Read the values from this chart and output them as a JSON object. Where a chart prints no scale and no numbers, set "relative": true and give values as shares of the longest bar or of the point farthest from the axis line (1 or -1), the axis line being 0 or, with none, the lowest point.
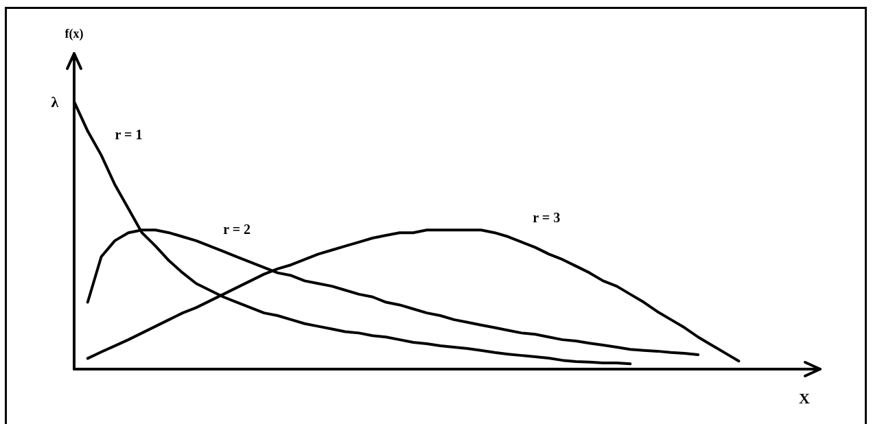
{
  "chart_data": {
    "type": "line",
    "relative": true,
    "ylabel": "f(x)",
    "xlabel": "X",
    "line_style": "solid",
    "annotations": [
      "λ"
    ],
    "categories": [
      null,
      null,
      null,
      null,
      null,
      null,
      null,
      null,
      null,
      null,
      null,
      null,
      null,
      null,
      null,
      null,
      null,
      null,
      null,
      null,
      null,
      null,
      null,
      null,
      null,
      null,
      null,
      null,
      null,
      null,
      null,
      null,
      null,
      null,
      null,
      null,
      null,
      null,
      null,
      null,
      null,
      null,
      null,
      null,
      null,
      null,
      null,
      null,
      null,
      null,
      null,
      null,
      null,
      null,
      null,
      null
    ],
    "series": [
      {
        "name": "r = 1",
        "color": "#000000",
        "values": [
          1.0,
          0.89,
          0.8,
          0.69,
          0.6,
          0.51,
          0.46,
          0.405,
          0.36,
          0.32,
          0.295,
          0.27,
          0.25,
          0.23,
          0.21,
          0.2,
          0.185,
          0.17,
          0.16,
          0.15,
          0.14,
          0.135,
          0.125,
          0.12,
          0.11,
          0.1,
          0.095,
          0.087,
          0.082,
          0.077,
          0.07,
          0.062,
          0.056,
          0.051,
          0.046,
          0.041,
          0.033,
          0.028,
          0.026,
          0.023,
          0.023,
          0.02,
          null,
          null,
          null,
          null,
          null,
          null,
          null,
          null,
          null,
          null,
          null,
          null,
          null,
          null
        ]
      },
      {
        "name": "r = 2",
        "color": "#000000",
        "values": [
          null,
          0.25,
          0.42,
          0.48,
          0.51,
          0.52,
          0.52,
          0.51,
          0.495,
          0.48,
          0.46,
          0.44,
          0.42,
          0.4,
          0.38,
          0.36,
          0.35,
          0.33,
          0.32,
          0.31,
          0.295,
          0.28,
          0.27,
          0.25,
          0.24,
          0.225,
          0.21,
          0.2,
          0.185,
          0.175,
          0.165,
          0.155,
          0.145,
          0.135,
          0.13,
          0.12,
          0.11,
          0.105,
          0.097,
          0.09,
          0.082,
          0.074,
          0.07,
          0.067,
          0.062,
          0.059,
          0.054,
          null,
          null,
          null,
          null,
          null,
          null,
          null,
          null,
          null
        ]
      },
      {
        "name": "r = 3",
        "color": "#000000",
        "values": [
          null,
          0.04,
          0.064,
          0.087,
          0.11,
          0.135,
          0.16,
          0.185,
          0.21,
          0.23,
          0.255,
          0.28,
          0.305,
          0.33,
          0.355,
          0.375,
          0.39,
          0.41,
          0.43,
          0.445,
          0.46,
          0.475,
          0.49,
          0.5,
          0.51,
          0.51,
          0.52,
          0.52,
          0.52,
          0.52,
          0.52,
          0.51,
          0.495,
          0.475,
          0.455,
          0.43,
          0.41,
          0.385,
          0.36,
          0.33,
          0.31,
          0.28,
          0.25,
          0.215,
          0.185,
          0.155,
          0.12,
          0.09,
          0.06,
          0.03,
          null,
          null,
          null,
          null,
          null,
          null
        ]
      }
    ]
  }
}
